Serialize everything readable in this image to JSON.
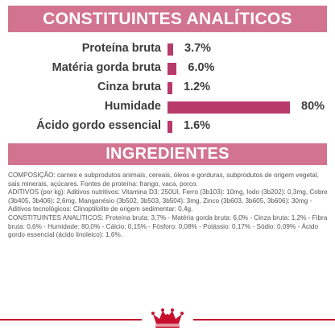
{
  "sections": {
    "constituents_title": "CONSTITUINTES ANALÍTICOS",
    "ingredients_title": "INGREDIENTES"
  },
  "chart_data": {
    "type": "bar",
    "orientation": "horizontal",
    "title": "CONSTITUINTES ANALÍTICOS",
    "categories": [
      "Proteína bruta",
      "Matéria gorda bruta",
      "Cinza bruta",
      "Humidade",
      "Ácido gordo essencial"
    ],
    "values": [
      3.7,
      6.0,
      1.2,
      80,
      1.6
    ],
    "value_labels": [
      "3.7%",
      "6.0%",
      "1.2%",
      "80%",
      "1.6%"
    ],
    "unit": "%",
    "xlim": [
      0,
      100
    ],
    "grid": false,
    "bar_color": "#b83a6a"
  },
  "ingredients": {
    "paragraphs": [
      "COMPOSIÇÃO: carnes e subprodutos animais, cereais, óleos e gorduras, subprodutos de origem vegetal, sais minerais, açúcares. Fontes de proteína: frango, vaca, porco.",
      "ADITIVOS (por kg): Aditivos nutritivos: Vitamina D3: 250UI, Ferro (3b103): 10mg, Iodo (3b202): 0,3mg, Cobre (3b405, 3b406): 2,6mg, Manganésio (3b502, 3b503, 3b504): 3mg, Zinco (3b603, 3b605, 3b606): 30mg - Aditivos tecnológicos: Clinoptilolite de origem sedimentar: 0,4g.",
      "CONSTITUINTES ANALÍTICOS: Proteína bruta: 3,7% - Matéria gorda bruta: 6,0% - Cinza bruta: 1,2% - Fibra bruta: 0,6% - Humidade: 80,0% - Cálcio: 0,15% - Fósforo: 0,08% - Potássio: 0,17% - Sódio: 0,09% - Ácido gordo essencial (ácido linoleico): 1,6%."
    ]
  },
  "colors": {
    "band": "#d2748f",
    "bar": "#b83a6a",
    "footer_line": "#c8102e",
    "logo": "#c8102e"
  },
  "logo": {
    "name": "royal-canin-crown-logo"
  }
}
